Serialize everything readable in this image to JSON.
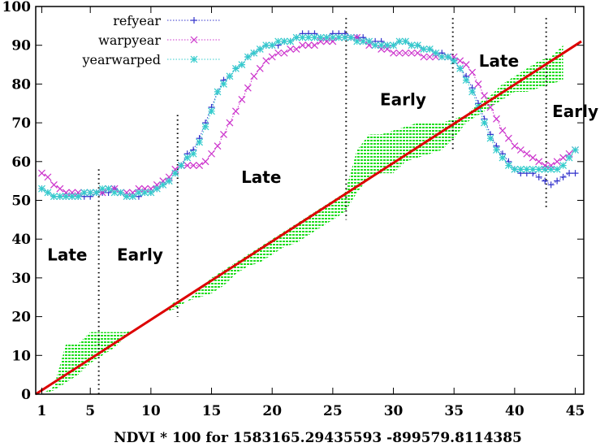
{
  "chart_data": {
    "type": "line",
    "title": "",
    "xlabel": "NDVI * 100 for 1583165.29435593 -899579.8114385",
    "ylabel": "",
    "xlim": [
      0.5,
      45.7
    ],
    "ylim": [
      0,
      100
    ],
    "xticks": [
      1,
      5,
      10,
      15,
      20,
      25,
      30,
      35,
      40,
      45
    ],
    "yticks": [
      0,
      10,
      20,
      30,
      40,
      50,
      60,
      70,
      80,
      90,
      100
    ],
    "legend": "top-left",
    "series": [
      {
        "name": "refyear",
        "color": "#3333cc",
        "marker": "plus",
        "x": [
          1,
          1.5,
          2,
          2.5,
          3,
          3.5,
          4,
          4.5,
          5,
          5.5,
          6,
          6.5,
          7,
          7.5,
          8,
          8.5,
          9,
          9.5,
          10,
          10.5,
          11,
          11.5,
          12,
          12.5,
          13,
          13.5,
          14,
          14.5,
          15,
          15.5,
          16,
          16.5,
          17,
          17.5,
          18,
          18.5,
          19,
          19.5,
          20,
          20.5,
          21,
          21.5,
          22,
          22.5,
          23,
          23.5,
          24,
          24.5,
          25,
          25.5,
          26,
          26.5,
          27,
          27.5,
          28,
          28.5,
          29,
          29.5,
          30,
          30.5,
          31,
          31.5,
          32,
          32.5,
          33,
          33.5,
          34,
          34.5,
          35,
          35.5,
          36,
          36.5,
          37,
          37.5,
          38,
          38.5,
          39,
          39.5,
          40,
          40.5,
          41,
          41.5,
          42,
          42.5,
          43,
          43.5,
          44,
          44.5,
          45
        ],
        "y": [
          53,
          52,
          51,
          51,
          51,
          51,
          51,
          51,
          51,
          52,
          52,
          52,
          53,
          52,
          51,
          51,
          51,
          52,
          52,
          53,
          54,
          55,
          57,
          59,
          62,
          63,
          66,
          70,
          74,
          78,
          81,
          82,
          84,
          85,
          87,
          88,
          89,
          90,
          90,
          90,
          91,
          91,
          92,
          93,
          93,
          93,
          92,
          92,
          93,
          93,
          93,
          92,
          92,
          92,
          91,
          91,
          91,
          90,
          90,
          91,
          91,
          90,
          90,
          89,
          89,
          88,
          88,
          87,
          86,
          84,
          82,
          79,
          75,
          71,
          67,
          64,
          62,
          60,
          58,
          57,
          57,
          57,
          56,
          55,
          54,
          55,
          56,
          57,
          57
        ]
      },
      {
        "name": "warpyear",
        "color": "#cc33cc",
        "marker": "x",
        "x": [
          1,
          1.5,
          2,
          2.5,
          3,
          3.5,
          4,
          4.5,
          5,
          5.5,
          6,
          6.5,
          7,
          7.5,
          8,
          8.5,
          9,
          9.5,
          10,
          10.5,
          11,
          11.5,
          12,
          12.5,
          13,
          13.5,
          14,
          14.5,
          15,
          15.5,
          16,
          16.5,
          17,
          17.5,
          18,
          18.5,
          19,
          19.5,
          20,
          20.5,
          21,
          21.5,
          22,
          22.5,
          23,
          23.5,
          24,
          24.5,
          25,
          25.5,
          26,
          26.5,
          27,
          27.5,
          28,
          28.5,
          29,
          29.5,
          30,
          30.5,
          31,
          31.5,
          32,
          32.5,
          33,
          33.5,
          34,
          34.5,
          35,
          35.5,
          36,
          36.5,
          37,
          37.5,
          38,
          38.5,
          39,
          39.5,
          40,
          40.5,
          41,
          41.5,
          42,
          42.5,
          43,
          43.5,
          44,
          44.5,
          45
        ],
        "y": [
          57,
          56,
          54,
          53,
          52,
          52,
          52,
          52,
          52,
          52,
          52,
          53,
          53,
          52,
          52,
          52,
          53,
          53,
          53,
          54,
          55,
          56,
          58,
          59,
          59,
          59,
          59,
          60,
          62,
          64,
          67,
          70,
          73,
          76,
          79,
          82,
          84,
          86,
          87,
          88,
          88,
          89,
          89,
          90,
          90,
          90,
          91,
          91,
          91,
          92,
          92,
          92,
          92,
          91,
          90,
          90,
          89,
          89,
          88,
          88,
          88,
          88,
          88,
          87,
          87,
          87,
          87,
          87,
          87,
          86,
          85,
          83,
          80,
          77,
          74,
          71,
          68,
          66,
          64,
          63,
          62,
          61,
          60,
          59,
          59,
          60,
          61,
          62,
          63
        ]
      },
      {
        "name": "yearwarped",
        "color": "#33cccc",
        "marker": "star",
        "x": [
          1,
          1.5,
          2,
          2.5,
          3,
          3.5,
          4,
          4.5,
          5,
          5.5,
          6,
          6.5,
          7,
          7.5,
          8,
          8.5,
          9,
          9.5,
          10,
          10.5,
          11,
          11.5,
          12,
          12.5,
          13,
          13.5,
          14,
          14.5,
          15,
          15.5,
          16,
          16.5,
          17,
          17.5,
          18,
          18.5,
          19,
          19.5,
          20,
          20.5,
          21,
          21.5,
          22,
          22.5,
          23,
          23.5,
          24,
          24.5,
          25,
          25.5,
          26,
          26.5,
          27,
          27.5,
          28,
          28.5,
          29,
          29.5,
          30,
          30.5,
          31,
          31.5,
          32,
          32.5,
          33,
          33.5,
          34,
          34.5,
          35,
          35.5,
          36,
          36.5,
          37,
          37.5,
          38,
          38.5,
          39,
          39.5,
          40,
          40.5,
          41,
          41.5,
          42,
          42.5,
          43,
          43.5,
          44,
          44.5,
          45
        ],
        "y": [
          53,
          52,
          51,
          51,
          51,
          51,
          51,
          52,
          52,
          52,
          53,
          53,
          52,
          52,
          51,
          51,
          52,
          52,
          52,
          53,
          54,
          55,
          57,
          59,
          61,
          62,
          65,
          69,
          73,
          78,
          80,
          82,
          84,
          85,
          87,
          88,
          89,
          90,
          90,
          91,
          91,
          91,
          92,
          92,
          92,
          92,
          92,
          92,
          92,
          92,
          92,
          92,
          91,
          91,
          91,
          90,
          90,
          90,
          90,
          91,
          91,
          90,
          90,
          89,
          89,
          88,
          87,
          87,
          86,
          84,
          81,
          78,
          74,
          70,
          66,
          63,
          61,
          59,
          58,
          58,
          58,
          58,
          58,
          58,
          58,
          58,
          59,
          61,
          63
        ]
      },
      {
        "name": "",
        "color": "#dd0000",
        "marker": "none",
        "x": [
          0.5,
          45.5
        ],
        "y": [
          0,
          91
        ]
      }
    ],
    "shaded_region": {
      "color": "#22dd22",
      "pattern": "dashed-hatch",
      "x": [
        1,
        2,
        3,
        4,
        5,
        6,
        7,
        8,
        9,
        10,
        11,
        12,
        13,
        14,
        15,
        16,
        17,
        18,
        19,
        20,
        21,
        22,
        23,
        24,
        25,
        26,
        27,
        28,
        29,
        30,
        31,
        32,
        33,
        34,
        35,
        36,
        37,
        38,
        39,
        40,
        41,
        42,
        43,
        44
      ],
      "lower": [
        0,
        1,
        3,
        5,
        8,
        10,
        12,
        15,
        17,
        19,
        21,
        22,
        24,
        25,
        26,
        28,
        31,
        33,
        34,
        36,
        38,
        39,
        41,
        43,
        45,
        47,
        52,
        56,
        57,
        57,
        60,
        61,
        62,
        63,
        66,
        70,
        72,
        74,
        76,
        78,
        78,
        79,
        80,
        81
      ],
      "upper": [
        0,
        2,
        13,
        13,
        16,
        16,
        16,
        16,
        17,
        19,
        21,
        24,
        24,
        27,
        30,
        32,
        34,
        36,
        38,
        40,
        42,
        44,
        46,
        48,
        50,
        52,
        63,
        67,
        67,
        68,
        69,
        70,
        70,
        70,
        71,
        72,
        75,
        77,
        80,
        82,
        84,
        86,
        87,
        90
      ]
    },
    "vlines": [
      5.7,
      12.2,
      26.1,
      34.9,
      42.6
    ],
    "annotations": [
      {
        "text": "Late",
        "x": 3.1,
        "y": 36
      },
      {
        "text": "Early",
        "x": 9.1,
        "y": 36
      },
      {
        "text": "Late",
        "x": 19.1,
        "y": 56
      },
      {
        "text": "Early",
        "x": 30.8,
        "y": 76
      },
      {
        "text": "Late",
        "x": 38.7,
        "y": 86
      },
      {
        "text": "Early",
        "x": 45.0,
        "y": 73
      }
    ]
  }
}
